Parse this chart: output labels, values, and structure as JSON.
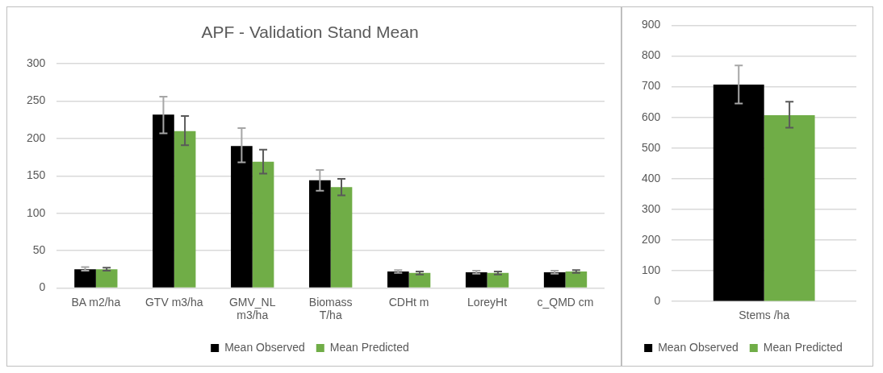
{
  "chart_data": [
    {
      "type": "bar",
      "title": "APF - Validation Stand Mean",
      "categories": [
        "BA m2/ha",
        "GTV m3/ha",
        "GMV_NL m3/ha",
        "Biomass T/ha",
        "CDHt m",
        "LoreyHt",
        "c_QMD cm"
      ],
      "series": [
        {
          "name": "Mean Observed",
          "color": "#000000",
          "values": [
            25,
            232,
            190,
            144,
            22,
            21,
            21
          ],
          "errors": [
            [
              23,
              28
            ],
            [
              207,
              256
            ],
            [
              168,
              214
            ],
            [
              130,
              158
            ],
            [
              20,
              24
            ],
            [
              19,
              23
            ],
            [
              19,
              23
            ]
          ]
        },
        {
          "name": "Mean Predicted",
          "color": "#70ad47",
          "values": [
            25,
            210,
            169,
            135,
            20,
            20,
            22
          ],
          "errors": [
            [
              23,
              27
            ],
            [
              191,
              230
            ],
            [
              153,
              185
            ],
            [
              124,
              146
            ],
            [
              18,
              22
            ],
            [
              18,
              22
            ],
            [
              20,
              24
            ]
          ]
        }
      ],
      "ylim": [
        0,
        300
      ],
      "yticks": [
        0,
        50,
        100,
        150,
        200,
        250,
        300
      ],
      "grid": "y",
      "legend": "bottom"
    },
    {
      "type": "bar",
      "categories": [
        "Stems /ha"
      ],
      "series": [
        {
          "name": "Mean Observed",
          "color": "#000000",
          "values": [
            707
          ],
          "errors": [
            [
              645,
              769
            ]
          ]
        },
        {
          "name": "Mean Predicted",
          "color": "#70ad47",
          "values": [
            607
          ],
          "errors": [
            [
              566,
              651
            ]
          ]
        }
      ],
      "ylim": [
        0,
        900
      ],
      "yticks": [
        0,
        100,
        200,
        300,
        400,
        500,
        600,
        700,
        800,
        900
      ],
      "grid": "y",
      "legend": "bottom"
    }
  ]
}
